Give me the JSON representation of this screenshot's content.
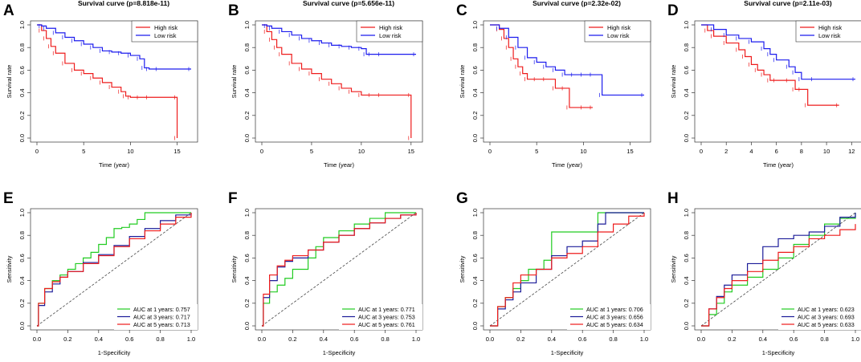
{
  "figure": {
    "survival_title_template": "Survival curve (p={p})",
    "survival_xlabel": "Time (year)",
    "survival_ylabel": "Survival rate",
    "roc_xlabel": "1-Specificity",
    "roc_ylabel": "Sensitivity",
    "legend_high": "High risk",
    "legend_low": "Low risk",
    "auc_label_template": "AUC at {n} years: {v}",
    "colors": {
      "high_risk": "#ee1c1c",
      "low_risk": "#1c1cee",
      "auc_1yr": "#22cc22",
      "auc_3yr": "#1c1c99",
      "auc_5yr": "#ee1c1c",
      "axis": "#333333",
      "diagonal": "#444444"
    }
  },
  "chart_data": [
    {
      "type": "line",
      "panel": "A",
      "title": "Survival curve (p=8.818e-11)",
      "p_value": "8.818e-11",
      "xlabel": "Time (year)",
      "ylabel": "Survival rate",
      "xlim": [
        0,
        16.5
      ],
      "ylim": [
        0,
        1
      ],
      "xticks": [
        0,
        5,
        10,
        15
      ],
      "yticks": [
        0.0,
        0.2,
        0.4,
        0.6,
        0.8,
        1.0
      ],
      "legend_position": "top-right",
      "series": [
        {
          "name": "High risk",
          "x": [
            0,
            0.5,
            1,
            1.5,
            2,
            3,
            4,
            5,
            6,
            7,
            8,
            9,
            9.5,
            10,
            11,
            12,
            15,
            15
          ],
          "y": [
            1.0,
            0.95,
            0.88,
            0.81,
            0.75,
            0.66,
            0.6,
            0.57,
            0.53,
            0.49,
            0.45,
            0.41,
            0.37,
            0.36,
            0.36,
            0.36,
            0.36,
            0.0
          ]
        },
        {
          "name": "Low risk",
          "x": [
            0,
            0.5,
            1,
            2,
            3,
            4,
            5,
            6,
            7,
            8,
            9,
            10,
            11,
            11.5,
            12,
            13,
            16.5
          ],
          "y": [
            1.0,
            0.99,
            0.97,
            0.93,
            0.89,
            0.86,
            0.83,
            0.8,
            0.77,
            0.76,
            0.75,
            0.73,
            0.7,
            0.62,
            0.61,
            0.61,
            0.61
          ]
        }
      ]
    },
    {
      "type": "line",
      "panel": "B",
      "title": "Survival curve (p=5.656e-11)",
      "p_value": "5.656e-11",
      "xlabel": "Time (year)",
      "ylabel": "Survival rate",
      "xlim": [
        0,
        15.5
      ],
      "ylim": [
        0,
        1
      ],
      "xticks": [
        0,
        5,
        10,
        15
      ],
      "yticks": [
        0.0,
        0.2,
        0.4,
        0.6,
        0.8,
        1.0
      ],
      "legend_position": "top-right",
      "series": [
        {
          "name": "High risk",
          "x": [
            0,
            0.5,
            1,
            1.5,
            2,
            3,
            4,
            5,
            6,
            7,
            8,
            9,
            10,
            11,
            12,
            15,
            15
          ],
          "y": [
            1.0,
            0.94,
            0.87,
            0.8,
            0.74,
            0.66,
            0.61,
            0.57,
            0.52,
            0.48,
            0.44,
            0.41,
            0.38,
            0.38,
            0.38,
            0.38,
            0.0
          ]
        },
        {
          "name": "Low risk",
          "x": [
            0,
            0.5,
            1,
            2,
            3,
            4,
            5,
            6,
            7,
            8,
            9,
            10,
            10.5,
            11,
            12,
            15.5
          ],
          "y": [
            1.0,
            0.99,
            0.97,
            0.94,
            0.91,
            0.88,
            0.86,
            0.84,
            0.82,
            0.81,
            0.8,
            0.79,
            0.74,
            0.74,
            0.74,
            0.74
          ]
        }
      ]
    },
    {
      "type": "line",
      "panel": "C",
      "title": "Survival curve (p=2.32e-02)",
      "p_value": "2.32e-02",
      "xlabel": "Time (year)",
      "ylabel": "Survival rate",
      "xlim": [
        0,
        16.5
      ],
      "ylim": [
        0,
        1
      ],
      "xticks": [
        0,
        5,
        10,
        15
      ],
      "yticks": [
        0.0,
        0.2,
        0.4,
        0.6,
        0.8,
        1.0
      ],
      "legend_position": "top-right",
      "series": [
        {
          "name": "High risk",
          "x": [
            0,
            1,
            1.5,
            2,
            2.5,
            3,
            3.5,
            4,
            5,
            6,
            7,
            8,
            8.5,
            10,
            11
          ],
          "y": [
            1.0,
            0.96,
            0.88,
            0.8,
            0.7,
            0.63,
            0.57,
            0.52,
            0.52,
            0.52,
            0.44,
            0.44,
            0.27,
            0.27,
            0.27
          ]
        },
        {
          "name": "Low risk",
          "x": [
            0,
            1,
            2,
            3,
            4,
            5,
            6,
            7,
            8,
            9,
            10,
            11,
            12,
            16.5
          ],
          "y": [
            1.0,
            0.97,
            0.89,
            0.8,
            0.71,
            0.67,
            0.63,
            0.6,
            0.56,
            0.56,
            0.56,
            0.56,
            0.38,
            0.38
          ]
        }
      ]
    },
    {
      "type": "line",
      "panel": "D",
      "title": "Survival curve (p=2.11e-03)",
      "p_value": "2.11e-03",
      "xlabel": "Time (year)",
      "ylabel": "Survival rate",
      "xlim": [
        0,
        12.3
      ],
      "ylim": [
        0,
        1
      ],
      "xticks": [
        0,
        2,
        4,
        6,
        8,
        10,
        12
      ],
      "yticks": [
        0.0,
        0.2,
        0.4,
        0.6,
        0.8,
        1.0
      ],
      "legend_position": "top-right",
      "series": [
        {
          "name": "High risk",
          "x": [
            0,
            0.5,
            1,
            2,
            3,
            3.5,
            4,
            4.5,
            5,
            5.5,
            6,
            7,
            7.5,
            8,
            8.5,
            11
          ],
          "y": [
            1.0,
            0.95,
            0.9,
            0.84,
            0.78,
            0.72,
            0.65,
            0.6,
            0.56,
            0.51,
            0.51,
            0.51,
            0.43,
            0.43,
            0.29,
            0.29
          ]
        },
        {
          "name": "Low risk",
          "x": [
            0,
            1,
            2,
            3,
            4,
            5,
            5.5,
            6,
            7,
            7.5,
            8,
            9,
            12.3
          ],
          "y": [
            1.0,
            0.96,
            0.91,
            0.88,
            0.85,
            0.79,
            0.74,
            0.69,
            0.63,
            0.58,
            0.52,
            0.52,
            0.52
          ]
        }
      ]
    },
    {
      "type": "line",
      "panel": "E",
      "subtype": "roc",
      "xlabel": "1-Specificity",
      "ylabel": "Sensitivity",
      "xlim": [
        0,
        1
      ],
      "ylim": [
        0,
        1
      ],
      "xticks": [
        0.0,
        0.2,
        0.4,
        0.6,
        0.8,
        1.0
      ],
      "yticks": [
        0.0,
        0.2,
        0.4,
        0.6,
        0.8,
        1.0
      ],
      "legend_position": "bottom-right",
      "series": [
        {
          "name": "AUC at 1 years",
          "years": 1,
          "auc": "0.757",
          "x": [
            0,
            0.01,
            0.05,
            0.1,
            0.15,
            0.2,
            0.25,
            0.3,
            0.35,
            0.4,
            0.45,
            0.5,
            0.55,
            0.6,
            0.65,
            0.7,
            0.8,
            0.9,
            1.0
          ],
          "y": [
            0,
            0.2,
            0.33,
            0.4,
            0.45,
            0.5,
            0.55,
            0.6,
            0.65,
            0.72,
            0.78,
            0.86,
            0.87,
            0.9,
            0.94,
            1.0,
            1.0,
            1.0,
            1.0
          ]
        },
        {
          "name": "AUC at 3 years",
          "years": 3,
          "auc": "0.717",
          "x": [
            0,
            0.01,
            0.05,
            0.1,
            0.15,
            0.2,
            0.3,
            0.4,
            0.5,
            0.6,
            0.7,
            0.8,
            0.9,
            1.0
          ],
          "y": [
            0,
            0.18,
            0.3,
            0.37,
            0.43,
            0.48,
            0.56,
            0.63,
            0.71,
            0.79,
            0.86,
            0.93,
            0.98,
            1.0
          ]
        },
        {
          "name": "AUC at 5 years",
          "years": 5,
          "auc": "0.713",
          "x": [
            0,
            0.01,
            0.05,
            0.1,
            0.15,
            0.2,
            0.3,
            0.4,
            0.5,
            0.6,
            0.7,
            0.8,
            0.9,
            1.0
          ],
          "y": [
            0,
            0.2,
            0.33,
            0.39,
            0.43,
            0.48,
            0.55,
            0.62,
            0.7,
            0.77,
            0.84,
            0.9,
            0.96,
            1.0
          ]
        }
      ]
    },
    {
      "type": "line",
      "panel": "F",
      "subtype": "roc",
      "xlabel": "1-Specificity",
      "ylabel": "Sensitivity",
      "xlim": [
        0,
        1
      ],
      "ylim": [
        0,
        1
      ],
      "xticks": [
        0.0,
        0.2,
        0.4,
        0.6,
        0.8,
        1.0
      ],
      "yticks": [
        0.0,
        0.2,
        0.4,
        0.6,
        0.8,
        1.0
      ],
      "legend_position": "bottom-right",
      "series": [
        {
          "name": "AUC at 1 years",
          "years": 1,
          "auc": "0.771",
          "x": [
            0,
            0.01,
            0.05,
            0.1,
            0.15,
            0.2,
            0.3,
            0.35,
            0.4,
            0.5,
            0.6,
            0.7,
            0.8,
            0.9,
            1.0
          ],
          "y": [
            0,
            0.2,
            0.3,
            0.36,
            0.42,
            0.5,
            0.6,
            0.7,
            0.78,
            0.84,
            0.9,
            0.95,
            1.0,
            1.0,
            1.0
          ]
        },
        {
          "name": "AUC at 3 years",
          "years": 3,
          "auc": "0.753",
          "x": [
            0,
            0.01,
            0.05,
            0.1,
            0.15,
            0.2,
            0.3,
            0.4,
            0.5,
            0.6,
            0.7,
            0.8,
            0.9,
            1.0
          ],
          "y": [
            0,
            0.25,
            0.4,
            0.52,
            0.57,
            0.6,
            0.67,
            0.74,
            0.8,
            0.86,
            0.91,
            0.95,
            0.98,
            1.0
          ]
        },
        {
          "name": "AUC at 5 years",
          "years": 5,
          "auc": "0.761",
          "x": [
            0,
            0.01,
            0.05,
            0.1,
            0.15,
            0.2,
            0.3,
            0.4,
            0.5,
            0.6,
            0.7,
            0.8,
            0.9,
            1.0
          ],
          "y": [
            0,
            0.28,
            0.45,
            0.53,
            0.58,
            0.62,
            0.67,
            0.74,
            0.8,
            0.86,
            0.91,
            0.95,
            0.98,
            1.0
          ]
        }
      ]
    },
    {
      "type": "line",
      "panel": "G",
      "subtype": "roc",
      "xlabel": "1-Specificity",
      "ylabel": "Sensitivity",
      "xlim": [
        0,
        1
      ],
      "ylim": [
        0,
        1
      ],
      "xticks": [
        0.0,
        0.2,
        0.4,
        0.6,
        0.8,
        1.0
      ],
      "yticks": [
        0.0,
        0.2,
        0.4,
        0.6,
        0.8,
        1.0
      ],
      "legend_position": "bottom-right",
      "series": [
        {
          "name": "AUC at 1 years",
          "years": 1,
          "auc": "0.706",
          "x": [
            0,
            0.05,
            0.1,
            0.15,
            0.2,
            0.25,
            0.3,
            0.35,
            0.4,
            0.45,
            0.5,
            0.55,
            0.6,
            0.7,
            0.75,
            0.8,
            0.9,
            1.0
          ],
          "y": [
            0,
            0.17,
            0.25,
            0.33,
            0.4,
            0.5,
            0.5,
            0.58,
            0.83,
            0.83,
            0.83,
            0.83,
            0.83,
            1.0,
            1.0,
            1.0,
            1.0,
            1.0
          ]
        },
        {
          "name": "AUC at 3 years",
          "years": 3,
          "auc": "0.656",
          "x": [
            0,
            0.05,
            0.1,
            0.15,
            0.2,
            0.3,
            0.4,
            0.5,
            0.6,
            0.7,
            0.75,
            0.8,
            0.9,
            1.0
          ],
          "y": [
            0,
            0.15,
            0.23,
            0.3,
            0.38,
            0.5,
            0.62,
            0.7,
            0.75,
            0.9,
            1.0,
            1.0,
            1.0,
            1.0
          ]
        },
        {
          "name": "AUC at 5 years",
          "years": 5,
          "auc": "0.634",
          "x": [
            0,
            0.05,
            0.1,
            0.15,
            0.2,
            0.3,
            0.4,
            0.5,
            0.6,
            0.7,
            0.8,
            0.9,
            1.0
          ],
          "y": [
            0,
            0.17,
            0.25,
            0.38,
            0.45,
            0.5,
            0.6,
            0.64,
            0.7,
            0.83,
            0.9,
            0.97,
            1.0
          ]
        }
      ]
    },
    {
      "type": "line",
      "panel": "H",
      "subtype": "roc",
      "xlabel": "1-Specificity",
      "ylabel": "Sensitivity",
      "xlim": [
        0,
        1
      ],
      "ylim": [
        0,
        1
      ],
      "xticks": [
        0.0,
        0.2,
        0.4,
        0.6,
        0.8,
        1.0
      ],
      "yticks": [
        0.0,
        0.2,
        0.4,
        0.6,
        0.8,
        1.0
      ],
      "legend_position": "bottom-right",
      "series": [
        {
          "name": "AUC at 1 years",
          "years": 1,
          "auc": "0.623",
          "x": [
            0,
            0.05,
            0.1,
            0.15,
            0.2,
            0.3,
            0.4,
            0.5,
            0.6,
            0.7,
            0.8,
            0.9,
            1.0
          ],
          "y": [
            0,
            0.1,
            0.2,
            0.3,
            0.36,
            0.43,
            0.5,
            0.6,
            0.72,
            0.8,
            0.9,
            0.95,
            1.0
          ]
        },
        {
          "name": "AUC at 3 years",
          "years": 3,
          "auc": "0.693",
          "x": [
            0,
            0.05,
            0.1,
            0.15,
            0.2,
            0.3,
            0.4,
            0.5,
            0.6,
            0.7,
            0.8,
            0.9,
            1.0
          ],
          "y": [
            0,
            0.15,
            0.26,
            0.36,
            0.45,
            0.55,
            0.7,
            0.77,
            0.8,
            0.83,
            0.88,
            0.96,
            1.0
          ]
        },
        {
          "name": "AUC at 5 years",
          "years": 5,
          "auc": "0.633",
          "x": [
            0,
            0.05,
            0.1,
            0.15,
            0.2,
            0.3,
            0.4,
            0.5,
            0.6,
            0.7,
            0.8,
            0.9,
            1.0
          ],
          "y": [
            0,
            0.15,
            0.25,
            0.33,
            0.4,
            0.48,
            0.58,
            0.65,
            0.7,
            0.77,
            0.8,
            0.85,
            0.9
          ]
        }
      ]
    }
  ]
}
